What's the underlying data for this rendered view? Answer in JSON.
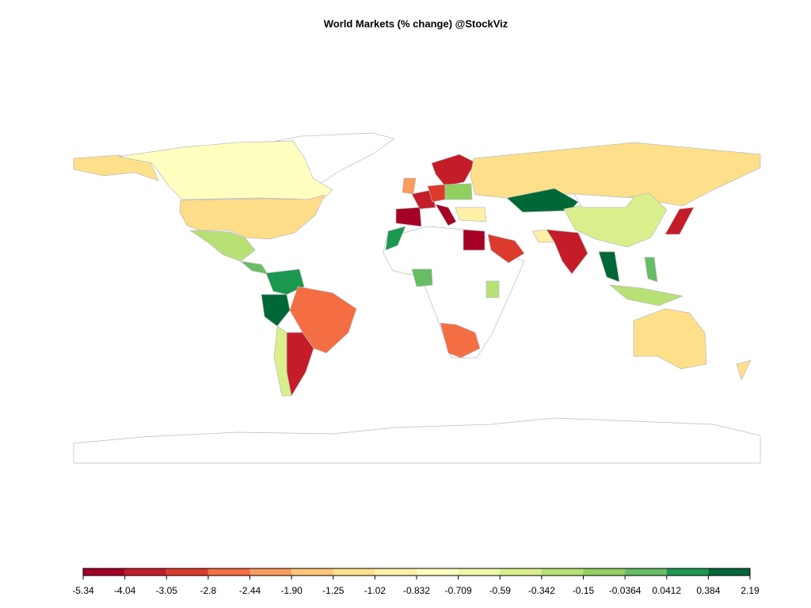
{
  "chart_data": {
    "type": "choropleth-legend",
    "title": "World Markets (% change) @StockViz",
    "breaks": [
      -5.34,
      -4.04,
      -3.05,
      -2.8,
      -2.44,
      {
        "value": -1.9,
        "label": "-1.90"
      },
      -1.25,
      -1.02,
      -0.832,
      -0.709,
      -0.59,
      -0.342,
      -0.15,
      -0.0364,
      0.0412,
      0.384,
      2.19
    ],
    "colors": [
      "#a50026",
      "#c41c28",
      "#dc3a2c",
      "#f46d43",
      "#f99c5c",
      "#fdc676",
      "#fee08b",
      "#fff0a8",
      "#ffffbf",
      "#eef8a8",
      "#d9ef8b",
      "#b7e075",
      "#91cf60",
      "#66bd63",
      "#1a9850",
      "#006837"
    ]
  }
}
